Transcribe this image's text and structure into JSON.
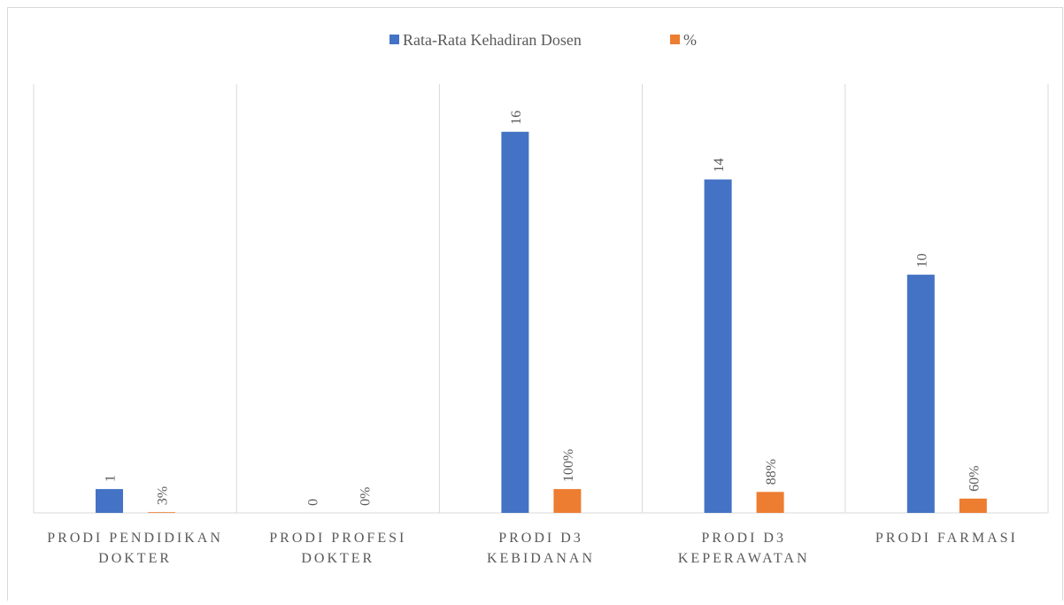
{
  "chart_data": {
    "type": "bar",
    "categories": [
      "PRODI PENDIDIKAN DOKTER",
      "PRODI PROFESI DOKTER",
      "PRODI D3 KEBIDANAN",
      "PRODI D3 KEPERAWATAN",
      "PRODI FARMASI"
    ],
    "series": [
      {
        "name": "Rata-Rata Kehadiran Dosen",
        "color": "#4472c4",
        "values": [
          1,
          0,
          16,
          14,
          10
        ]
      },
      {
        "name": "%",
        "color": "#ed7d31",
        "values": [
          0.03,
          0,
          1,
          0.88,
          0.6
        ],
        "value_labels": [
          "3%",
          "0%",
          "100%",
          "88%",
          "60%"
        ]
      }
    ],
    "ylim": [
      0,
      18
    ],
    "legend": "top"
  }
}
